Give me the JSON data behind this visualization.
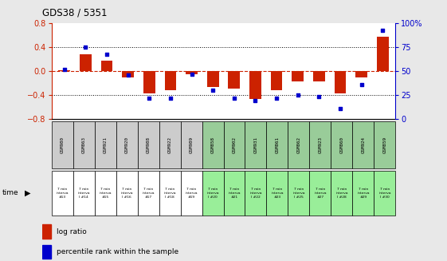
{
  "title": "GDS38 / 5351",
  "samples": [
    "GSM980",
    "GSM863",
    "GSM921",
    "GSM920",
    "GSM988",
    "GSM922",
    "GSM989",
    "GSM858",
    "GSM902",
    "GSM931",
    "GSM861",
    "GSM862",
    "GSM923",
    "GSM860",
    "GSM924",
    "GSM859"
  ],
  "time_labels": [
    "7 min\ninterva\n#13",
    "7 min\ninterva\nl #14",
    "7 min\ninterva\n#15",
    "7 min\ninterva\nl #16",
    "7 min\ninterva\n#17",
    "7 min\ninterva\nl #18",
    "7 min\ninterva\n#19",
    "7 min\ninterva\nl #20",
    "7 min\ninterva\n#21",
    "7 min\ninterva\nl #22",
    "7 min\ninterva\n#23",
    "7 min\ninterva\nl #25",
    "7 min\ninterva\n#27",
    "7 min\ninterva\nl #28",
    "7 min\ninterva\n#29",
    "7 min\ninterva\nl #30"
  ],
  "log_ratio": [
    0.02,
    0.28,
    0.18,
    -0.1,
    -0.38,
    -0.32,
    -0.05,
    -0.27,
    -0.3,
    -0.47,
    -0.32,
    -0.17,
    -0.17,
    -0.38,
    -0.1,
    0.58
  ],
  "percentile": [
    52,
    75,
    68,
    46,
    22,
    22,
    47,
    30,
    22,
    19,
    22,
    25,
    23,
    11,
    36,
    93
  ],
  "ylim_left": [
    -0.8,
    0.8
  ],
  "ylim_right": [
    0,
    100
  ],
  "bar_color": "#cc2200",
  "dot_color": "#0000cc",
  "bg_color": "#e8e8e8",
  "plot_bg": "#ffffff",
  "zero_line_color": "#cc2200",
  "left_tick_color": "#cc2200",
  "right_tick_color": "#0000cc",
  "sample_bg_gray": "#cccccc",
  "sample_bg_green": "#99cc99",
  "time_bg_white": "#ffffff",
  "time_bg_green": "#99ee99",
  "n_gray": 7,
  "n_green": 9
}
